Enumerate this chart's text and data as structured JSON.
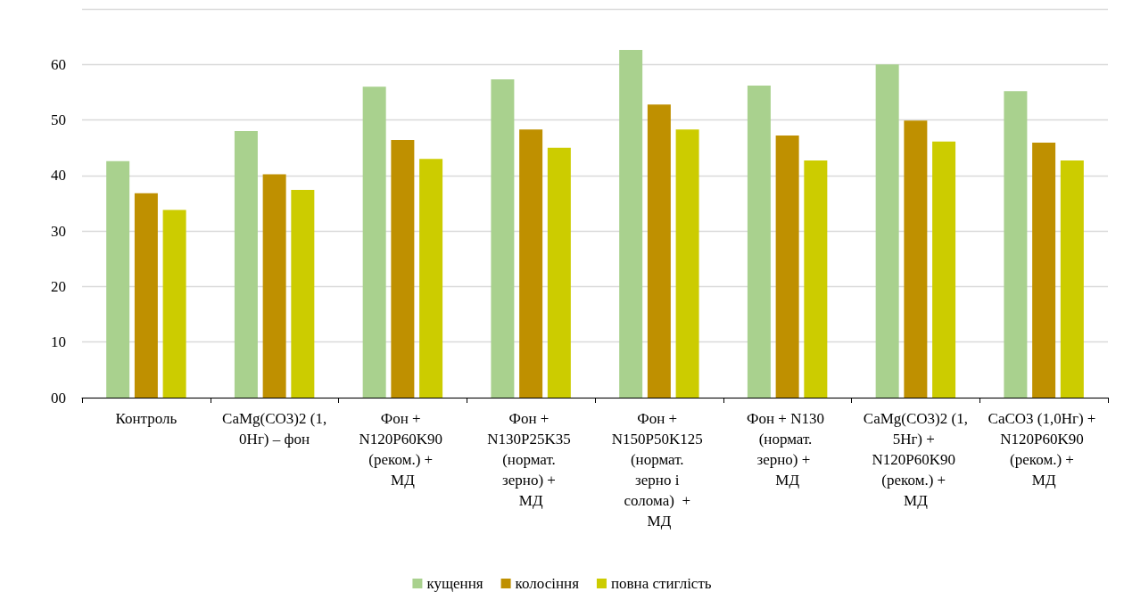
{
  "chart_data": {
    "type": "bar",
    "categories": [
      "Контроль",
      "CaMg(CO3)2 (1,0Нг) – фон",
      "Фон + N120P60K90 (реком.) + МД",
      "Фон + N130P25K35 (нормат. зерно) + МД",
      "Фон + N150P50K125 (нормат. зерно і солома)  + МД",
      "Фон + N130 (нормат. зерно) +  МД",
      "CaMg(CO3)2 (1,5Нг) + N120P60K90 (реком.) + МД",
      "CaCO3 (1,0Нг) + N120P60K90 (реком.) + МД"
    ],
    "series": [
      {
        "name": "кущення",
        "color": "#a9d18e",
        "values": [
          42.6,
          48.0,
          56.0,
          57.3,
          62.6,
          56.2,
          60.0,
          55.2
        ]
      },
      {
        "name": "колосіння",
        "color": "#bf9000",
        "values": [
          36.8,
          40.2,
          46.4,
          48.3,
          52.8,
          47.2,
          49.9,
          45.9
        ]
      },
      {
        "name": "повна стиглість",
        "color": "#cccc00",
        "values": [
          33.8,
          37.4,
          43.0,
          45.0,
          48.3,
          42.7,
          46.1,
          42.7
        ]
      }
    ],
    "ylim": [
      0,
      70
    ],
    "yticks": [
      {
        "value": 0,
        "label": "00"
      },
      10,
      20,
      30,
      40,
      50,
      60,
      {
        "value": 70,
        "label": null
      }
    ],
    "grid": "y",
    "legend": "bottom"
  }
}
